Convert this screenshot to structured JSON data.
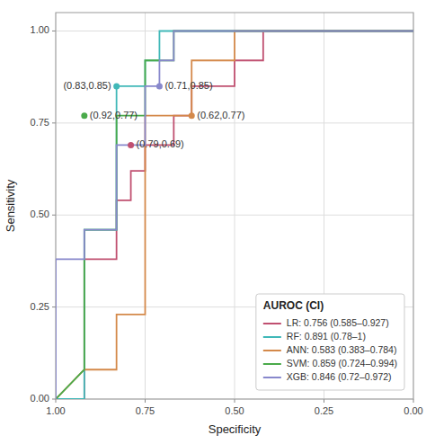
{
  "chart_data": {
    "type": "line",
    "xlabel": "Specificity",
    "ylabel": "Sensitivity",
    "xlim": [
      1.0,
      0.0
    ],
    "ylim": [
      0.0,
      1.05
    ],
    "xticks": [
      {
        "value": 1.0,
        "label": "1.00"
      },
      {
        "value": 0.75,
        "label": "0.75"
      },
      {
        "value": 0.5,
        "label": "0.50"
      },
      {
        "value": 0.25,
        "label": "0.25"
      },
      {
        "value": 0.0,
        "label": "0.00"
      }
    ],
    "yticks": [
      {
        "value": 0.0,
        "label": "0.00"
      },
      {
        "value": 0.25,
        "label": "0.25"
      },
      {
        "value": 0.5,
        "label": "0.50"
      },
      {
        "value": 0.75,
        "label": "0.75"
      },
      {
        "value": 1.0,
        "label": "1.00"
      }
    ],
    "grid": true,
    "legend": "lower right",
    "legend_title": "AUROC (CI)",
    "series": [
      {
        "name": "LR: 0.756 (0.585–0.927)",
        "color": "#c05070",
        "x": [
          1.0,
          0.92,
          0.92,
          0.83,
          0.83,
          0.79,
          0.79,
          0.75,
          0.75,
          0.67,
          0.67,
          0.62,
          0.62,
          0.5,
          0.5,
          0.42,
          0.42,
          0.33,
          0.33,
          0.25,
          0.25,
          0.0
        ],
        "y": [
          0.0,
          0.0,
          0.38,
          0.38,
          0.54,
          0.54,
          0.62,
          0.62,
          0.69,
          0.69,
          0.77,
          0.77,
          0.85,
          0.85,
          0.92,
          0.92,
          1.0,
          1.0,
          1.0,
          1.0,
          1.0,
          1.0
        ],
        "dot_x": 0.79,
        "dot_y": 0.69,
        "dot_label": "(0.79,0.69)"
      },
      {
        "name": "RF: 0.891 (0.78–1)",
        "color": "#40b8b8",
        "x": [
          1.0,
          0.92,
          0.92,
          0.83,
          0.83,
          0.75,
          0.75,
          0.71,
          0.71,
          0.5,
          0.5,
          0.33,
          0.33,
          0.25,
          0.25,
          0.0
        ],
        "y": [
          0.0,
          0.0,
          0.46,
          0.46,
          0.85,
          0.85,
          0.92,
          0.92,
          1.0,
          1.0,
          1.0,
          1.0,
          1.0,
          1.0,
          1.0,
          1.0
        ],
        "dot_x": 0.83,
        "dot_y": 0.85,
        "dot_label": "(0.83,0.85)"
      },
      {
        "name": "ANN: 0.583 (0.383–0.784)",
        "color": "#d4894a",
        "x": [
          1.0,
          0.92,
          0.92,
          0.83,
          0.83,
          0.75,
          0.75,
          0.67,
          0.67,
          0.62,
          0.62,
          0.5,
          0.5,
          0.25,
          0.25,
          0.0
        ],
        "y": [
          0.0,
          0.08,
          0.08,
          0.08,
          0.23,
          0.23,
          0.77,
          0.77,
          0.77,
          0.77,
          0.92,
          0.92,
          1.0,
          1.0,
          1.0,
          1.0
        ],
        "dot_x": 0.62,
        "dot_y": 0.77,
        "dot_label": "(0.62,0.77)"
      },
      {
        "name": "SVM: 0.859 (0.724–0.994)",
        "color": "#4aaa4a",
        "x": [
          1.0,
          0.92,
          0.92,
          0.83,
          0.83,
          0.75,
          0.75,
          0.67,
          0.67,
          0.5,
          0.5,
          0.33,
          0.33,
          0.25,
          0.25,
          0.0
        ],
        "y": [
          0.0,
          0.08,
          0.46,
          0.46,
          0.77,
          0.77,
          0.92,
          0.92,
          1.0,
          1.0,
          1.0,
          1.0,
          1.0,
          1.0,
          1.0,
          1.0
        ],
        "dot_x": 0.92,
        "dot_y": 0.77,
        "dot_label": "(0.92,0.77)"
      },
      {
        "name": "XGB: 0.846 (0.72–0.972)",
        "color": "#8888cc",
        "x": [
          1.0,
          1.0,
          0.92,
          0.92,
          0.83,
          0.83,
          0.75,
          0.75,
          0.71,
          0.71,
          0.67,
          0.67,
          0.5,
          0.5,
          0.33,
          0.33,
          0.0
        ],
        "y": [
          0.0,
          0.38,
          0.38,
          0.46,
          0.46,
          0.69,
          0.69,
          0.85,
          0.85,
          0.92,
          0.92,
          1.0,
          1.0,
          1.0,
          1.0,
          1.0,
          1.0
        ],
        "dot_x": 0.71,
        "dot_y": 0.85,
        "dot_label": "(0.71,0.85)"
      }
    ]
  }
}
